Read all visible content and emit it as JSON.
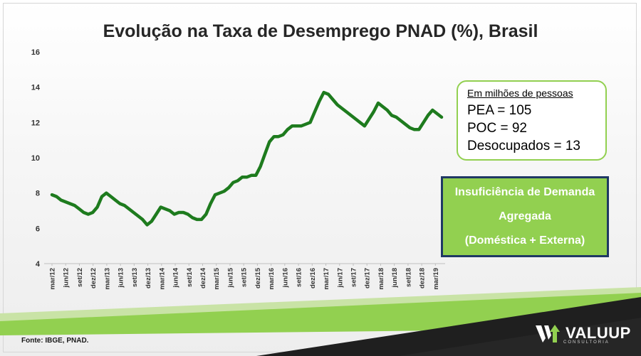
{
  "slide": {
    "title": "Evolução na Taxa de Desemprego PNAD (%), Brasil",
    "source": "Fonte: IBGE, PNAD."
  },
  "info_box": {
    "header": "Em milhões de pessoas",
    "lines": [
      "PEA = 105",
      "POC = 92",
      "Desocupados = 13"
    ]
  },
  "demand_box": {
    "lines": [
      "Insuficiência de Demanda",
      "Agregada",
      "(Doméstica + Externa)"
    ]
  },
  "logo": {
    "text": "VALUUP",
    "sub": "CONSULTORIA"
  },
  "colors": {
    "line": "#1e7b1e",
    "accent_green": "#92d050",
    "box_border": "#1f3864",
    "dark_band": "#1f1f1f"
  },
  "chart_data": {
    "type": "line",
    "title": "Evolução na Taxa de Desemprego PNAD (%), Brasil",
    "xlabel": "",
    "ylabel": "",
    "ylim": [
      4,
      16
    ],
    "yticks": [
      4,
      6,
      8,
      10,
      12,
      14,
      16
    ],
    "grid": false,
    "x_tick_labels": [
      "mar/12",
      "jun/12",
      "set/12",
      "dez/12",
      "mar/13",
      "jun/13",
      "set/13",
      "dez/13",
      "mar/14",
      "jun/14",
      "set/14",
      "dez/14",
      "mar/15",
      "jun/15",
      "set/15",
      "dez/15",
      "mar/16",
      "jun/16",
      "set/16",
      "dez/16",
      "mar/17",
      "jun/17",
      "set/17",
      "dez/17",
      "mar/18",
      "jun/18",
      "set/18",
      "dez/18",
      "mar/19"
    ],
    "series": [
      {
        "values": [
          7.9,
          7.8,
          7.6,
          7.5,
          7.4,
          7.3,
          7.1,
          6.9,
          6.8,
          6.9,
          7.2,
          7.8,
          8.0,
          7.8,
          7.6,
          7.4,
          7.3,
          7.1,
          6.9,
          6.7,
          6.5,
          6.2,
          6.4,
          6.8,
          7.2,
          7.1,
          7.0,
          6.8,
          6.9,
          6.9,
          6.8,
          6.6,
          6.5,
          6.5,
          6.8,
          7.4,
          7.9,
          8.0,
          8.1,
          8.3,
          8.6,
          8.7,
          8.9,
          8.9,
          9.0,
          9.0,
          9.5,
          10.2,
          10.9,
          11.2,
          11.2,
          11.3,
          11.6,
          11.8,
          11.8,
          11.8,
          11.9,
          12.0,
          12.6,
          13.2,
          13.7,
          13.6,
          13.3,
          13.0,
          12.8,
          12.6,
          12.4,
          12.2,
          12.0,
          11.8,
          12.2,
          12.6,
          13.1,
          12.9,
          12.7,
          12.4,
          12.3,
          12.1,
          11.9,
          11.7,
          11.6,
          11.6,
          12.0,
          12.4,
          12.7,
          12.5,
          12.3
        ]
      }
    ]
  }
}
